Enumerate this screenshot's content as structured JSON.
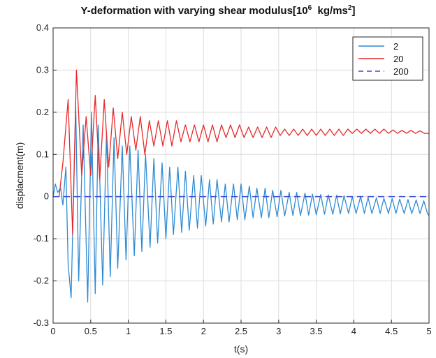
{
  "chart_data": {
    "type": "line",
    "title_main": "Y-deformation with varying shear modulus[10",
    "title_exp": "6",
    "title_mid": "  kg/ms",
    "title_exp2": "2",
    "title_end": "]",
    "xlabel": "t(s)",
    "ylabel": "displacment(m)",
    "xlim": [
      0,
      5
    ],
    "ylim": [
      -0.3,
      0.4
    ],
    "xticks": [
      "0",
      "0.5",
      "1",
      "1.5",
      "2",
      "2.5",
      "3",
      "3.5",
      "4",
      "4.5",
      "5"
    ],
    "yticks": [
      "-0.3",
      "-0.2",
      "-0.1",
      "0",
      "0.1",
      "0.2",
      "0.3",
      "0.4"
    ],
    "grid": true,
    "legend_position": "top-right",
    "series": [
      {
        "name": "2",
        "color": "#2e8bd4",
        "style": "solid",
        "x": [
          0,
          0.03,
          0.06,
          0.1,
          0.13,
          0.17,
          0.2,
          0.24,
          0.3,
          0.34,
          0.4,
          0.46,
          0.51,
          0.56,
          0.6,
          0.66,
          0.71,
          0.76,
          0.81,
          0.86,
          0.92,
          0.97,
          1.02,
          1.08,
          1.13,
          1.18,
          1.23,
          1.29,
          1.34,
          1.39,
          1.45,
          1.5,
          1.55,
          1.6,
          1.66,
          1.71,
          1.76,
          1.81,
          1.87,
          1.92,
          1.97,
          2.03,
          2.08,
          2.13,
          2.18,
          2.24,
          2.29,
          2.34,
          2.4,
          2.45,
          2.5,
          2.55,
          2.61,
          2.66,
          2.71,
          2.77,
          2.82,
          2.87,
          2.92,
          2.98,
          3.03,
          3.08,
          3.14,
          3.19,
          3.24,
          3.29,
          3.35,
          3.4,
          3.45,
          3.5,
          3.56,
          3.61,
          3.66,
          3.72,
          3.77,
          3.82,
          3.87,
          3.93,
          3.98,
          4.03,
          4.09,
          4.14,
          4.19,
          4.24,
          4.3,
          4.35,
          4.4,
          4.46,
          4.51,
          4.56,
          4.61,
          4.67,
          4.72,
          4.77,
          4.83,
          4.88,
          4.93,
          4.98,
          5.0
        ],
        "y": [
          0,
          0.03,
          0.01,
          0.02,
          -0.02,
          0.07,
          -0.16,
          -0.24,
          0.22,
          -0.2,
          0.17,
          -0.25,
          0.2,
          -0.23,
          0.17,
          -0.21,
          0.15,
          -0.19,
          0.14,
          -0.17,
          0.12,
          -0.15,
          0.12,
          -0.14,
          0.11,
          -0.13,
          0.1,
          -0.12,
          0.09,
          -0.11,
          0.08,
          -0.1,
          0.07,
          -0.09,
          0.07,
          -0.085,
          0.06,
          -0.08,
          0.05,
          -0.075,
          0.05,
          -0.07,
          0.04,
          -0.065,
          0.04,
          -0.06,
          0.03,
          -0.06,
          0.03,
          -0.055,
          0.03,
          -0.055,
          0.025,
          -0.05,
          0.02,
          -0.05,
          0.02,
          -0.05,
          0.015,
          -0.048,
          0.015,
          -0.046,
          0.01,
          -0.045,
          0.01,
          -0.045,
          0.008,
          -0.044,
          0.006,
          -0.043,
          0.005,
          -0.042,
          0.004,
          -0.042,
          0.003,
          -0.041,
          0.002,
          -0.04,
          0.0,
          -0.04,
          0.0,
          -0.04,
          -0.002,
          -0.04,
          -0.003,
          -0.04,
          -0.004,
          -0.04,
          -0.005,
          -0.04,
          -0.006,
          -0.04,
          -0.007,
          -0.04,
          -0.008,
          -0.04,
          -0.01,
          -0.04,
          -0.045
        ]
      },
      {
        "name": "20",
        "color": "#e8292b",
        "style": "solid",
        "x": [
          0,
          0.08,
          0.13,
          0.2,
          0.26,
          0.31,
          0.38,
          0.44,
          0.5,
          0.56,
          0.62,
          0.68,
          0.74,
          0.8,
          0.86,
          0.92,
          0.98,
          1.04,
          1.1,
          1.16,
          1.22,
          1.28,
          1.34,
          1.4,
          1.46,
          1.52,
          1.58,
          1.64,
          1.7,
          1.76,
          1.82,
          1.88,
          1.94,
          2.0,
          2.06,
          2.12,
          2.18,
          2.24,
          2.3,
          2.36,
          2.42,
          2.48,
          2.54,
          2.6,
          2.66,
          2.72,
          2.78,
          2.84,
          2.9,
          2.96,
          3.02,
          3.08,
          3.14,
          3.2,
          3.26,
          3.32,
          3.38,
          3.44,
          3.5,
          3.56,
          3.62,
          3.68,
          3.74,
          3.8,
          3.86,
          3.92,
          3.98,
          4.04,
          4.1,
          4.16,
          4.22,
          4.28,
          4.34,
          4.4,
          4.46,
          4.52,
          4.58,
          4.64,
          4.7,
          4.76,
          4.82,
          4.88,
          4.94,
          5.0
        ],
        "y": [
          0,
          0.0,
          0.08,
          0.23,
          -0.09,
          0.3,
          0.05,
          0.19,
          0.05,
          0.24,
          0.04,
          0.23,
          0.07,
          0.21,
          0.09,
          0.2,
          0.1,
          0.19,
          0.11,
          0.19,
          0.1,
          0.18,
          0.12,
          0.18,
          0.12,
          0.18,
          0.12,
          0.18,
          0.13,
          0.17,
          0.13,
          0.17,
          0.13,
          0.17,
          0.13,
          0.17,
          0.13,
          0.17,
          0.14,
          0.17,
          0.14,
          0.17,
          0.14,
          0.165,
          0.14,
          0.165,
          0.14,
          0.165,
          0.14,
          0.165,
          0.145,
          0.16,
          0.145,
          0.16,
          0.145,
          0.16,
          0.145,
          0.16,
          0.145,
          0.16,
          0.145,
          0.16,
          0.145,
          0.16,
          0.145,
          0.16,
          0.15,
          0.16,
          0.15,
          0.16,
          0.15,
          0.16,
          0.15,
          0.16,
          0.15,
          0.158,
          0.15,
          0.157,
          0.15,
          0.157,
          0.15,
          0.156,
          0.15,
          0.15
        ]
      },
      {
        "name": "200",
        "color": "#3a4fd6",
        "style": "dashed",
        "x": [
          0,
          5
        ],
        "y": [
          0,
          0
        ]
      }
    ]
  }
}
